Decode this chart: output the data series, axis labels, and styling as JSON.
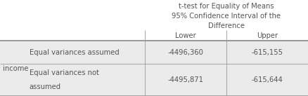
{
  "title_line1": "t-test for Equality of Means",
  "title_line2": "95% Confidence Interval of the",
  "title_line3": "Difference",
  "col_headers": [
    "Lower",
    "Upper"
  ],
  "row_label_main": "income",
  "row1_label": "Equal variances assumed",
  "row2_label_1": "Equal variances not",
  "row2_label_2": "assumed",
  "row1_values": [
    "-4496,360",
    "-615,155"
  ],
  "row2_values": [
    "-4495,871",
    "-615,644"
  ],
  "background_color": "#ffffff",
  "row_bg": "#ebebeb",
  "text_color": "#555555",
  "border_color": "#999999",
  "font_size": 7.2
}
